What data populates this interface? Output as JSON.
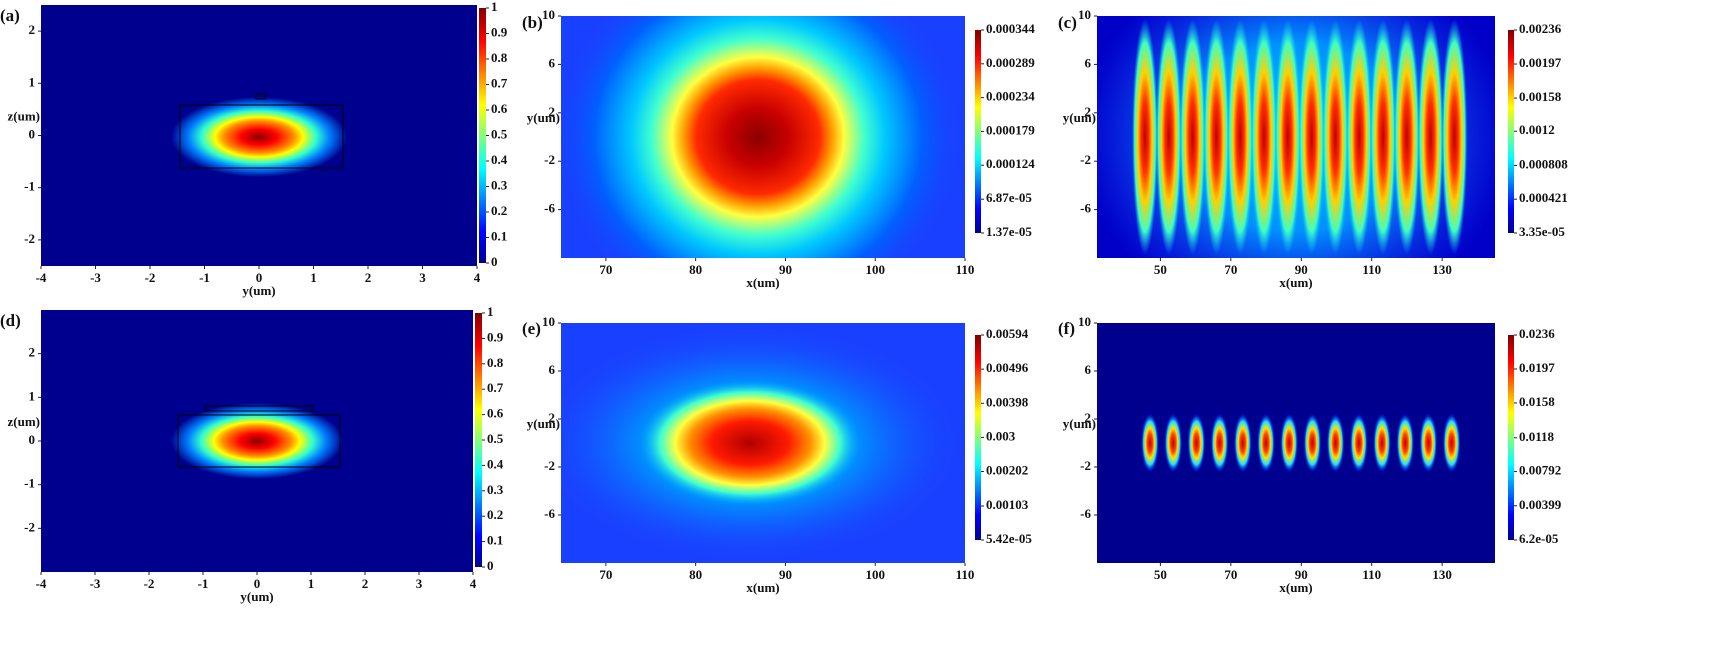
{
  "chart_data": [
    {
      "type": "heatmap",
      "panel": "(a)",
      "xlabel": "y(um)",
      "ylabel": "z(um)",
      "xlim": [
        -4,
        4
      ],
      "ylim": [
        -2.5,
        2.5
      ],
      "xticks": [
        -4,
        -3,
        -2,
        -1,
        0,
        1,
        2,
        3,
        4
      ],
      "yticks": [
        -2,
        -1,
        0,
        1,
        2
      ],
      "clim": [
        0,
        1
      ],
      "cticks": [
        0,
        0.1,
        0.2,
        0.3,
        0.4,
        0.5,
        0.6,
        0.7,
        0.8,
        0.9,
        1
      ]
    },
    {
      "type": "heatmap",
      "panel": "(b)",
      "xlabel": "x(um)",
      "ylabel": "y(um)",
      "xlim": [
        65,
        110
      ],
      "ylim": [
        -10,
        10
      ],
      "xticks": [
        70,
        80,
        90,
        100,
        110
      ],
      "yticks": [
        -6,
        -2,
        2,
        6,
        10
      ],
      "clim": [
        1.37e-05,
        0.000344
      ],
      "cticks": [
        {
          "value": 1.37e-05,
          "label": "1.37e-05"
        },
        {
          "value": 6.87e-05,
          "label": "6.87e-05"
        },
        0.000124,
        0.000179,
        0.000234,
        0.000289,
        0.000344
      ]
    },
    {
      "type": "heatmap",
      "panel": "(c)",
      "xlabel": "x(um)",
      "ylabel": "y(um)",
      "xlim": [
        32,
        145
      ],
      "ylim": [
        -10,
        10
      ],
      "xticks": [
        50,
        70,
        90,
        110,
        130
      ],
      "yticks": [
        -6,
        -2,
        2,
        6,
        10
      ],
      "clim": [
        3.35e-05,
        0.00236
      ],
      "cticks": [
        {
          "value": 3.35e-05,
          "label": "3.35e-05"
        },
        0.000421,
        0.000808,
        0.0012,
        0.00158,
        0.00197,
        0.00236
      ]
    },
    {
      "type": "heatmap",
      "panel": "(d)",
      "xlabel": "y(um)",
      "ylabel": "z(um)",
      "xlim": [
        -4,
        4
      ],
      "ylim": [
        -3,
        3
      ],
      "xticks": [
        -4,
        -3,
        -2,
        -1,
        0,
        1,
        2,
        3,
        4
      ],
      "yticks": [
        -2,
        -1,
        0,
        1,
        2
      ],
      "clim": [
        0,
        1
      ],
      "cticks": [
        0,
        0.1,
        0.2,
        0.3,
        0.4,
        0.5,
        0.6,
        0.7,
        0.8,
        0.9,
        1
      ]
    },
    {
      "type": "heatmap",
      "panel": "(e)",
      "xlabel": "x(um)",
      "ylabel": "y(um)",
      "xlim": [
        65,
        110
      ],
      "ylim": [
        -10,
        10
      ],
      "xticks": [
        70,
        80,
        90,
        100,
        110
      ],
      "yticks": [
        -6,
        -2,
        2,
        6,
        10
      ],
      "clim": [
        5.42e-05,
        0.00594
      ],
      "cticks": [
        {
          "value": 5.42e-05,
          "label": "5.42e-05"
        },
        0.00103,
        0.00202,
        0.003,
        0.00398,
        0.00496,
        0.00594
      ]
    },
    {
      "type": "heatmap",
      "panel": "(f)",
      "xlabel": "x(um)",
      "ylabel": "y(um)",
      "xlim": [
        32,
        145
      ],
      "ylim": [
        -10,
        10
      ],
      "xticks": [
        50,
        70,
        90,
        110,
        130
      ],
      "yticks": [
        -6,
        -2,
        2,
        6,
        10
      ],
      "clim": [
        6.2e-05,
        0.0236
      ],
      "cticks": [
        {
          "value": 6.2e-05,
          "label": "6.2e-05"
        },
        0.00399,
        0.00792,
        0.0118,
        0.0158,
        0.0197,
        0.0236
      ]
    }
  ]
}
